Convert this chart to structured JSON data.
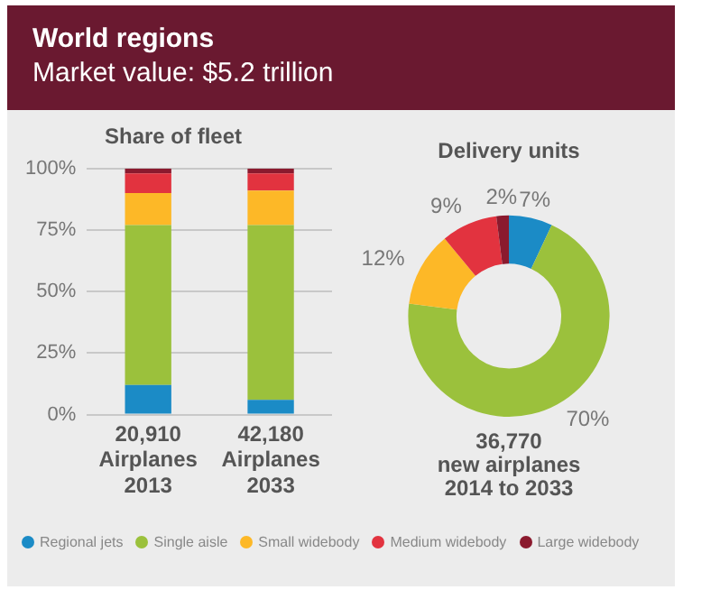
{
  "chart_data": [
    {
      "type": "other",
      "title": "World regions",
      "subtitle": "Market value: $5.2 trillion"
    },
    {
      "type": "bar",
      "title": "Share of fleet",
      "categories": [
        "20,910\nAirplanes\n2013",
        "42,180\nAirplanes\n2033"
      ],
      "stacked": true,
      "series": [
        {
          "name": "Regional jets",
          "color": "#1b8bc6",
          "values": [
            12,
            6
          ]
        },
        {
          "name": "Single aisle",
          "color": "#9bc13c",
          "values": [
            65,
            71
          ]
        },
        {
          "name": "Small widebody",
          "color": "#fdb827",
          "values": [
            13,
            14
          ]
        },
        {
          "name": "Medium widebody",
          "color": "#e2333f",
          "values": [
            8,
            7
          ]
        },
        {
          "name": "Large widebody",
          "color": "#8b1a2e",
          "values": [
            2,
            2
          ]
        }
      ],
      "ylim": [
        0,
        100
      ],
      "yticks": [
        {
          "value": 0,
          "label": "0%"
        },
        {
          "value": 25,
          "label": "25%"
        },
        {
          "value": 50,
          "label": "50%"
        },
        {
          "value": 75,
          "label": "75%"
        },
        {
          "value": 100,
          "label": "100%"
        }
      ],
      "grid": "y",
      "legend": "bottom"
    },
    {
      "type": "donut",
      "title": "Delivery units",
      "categories": [
        null,
        null,
        null,
        null,
        null
      ],
      "values": [
        7,
        70,
        12,
        9,
        2
      ],
      "colors": [
        "#1b8bc6",
        "#9bc13c",
        "#fdb827",
        "#e2333f",
        "#8b1a2e"
      ],
      "value_labels": [
        "7%",
        "70%",
        "12%",
        "9%",
        "2%"
      ],
      "annotations": [
        "36,770\nnew airplanes\n2014 to 2033"
      ]
    }
  ]
}
